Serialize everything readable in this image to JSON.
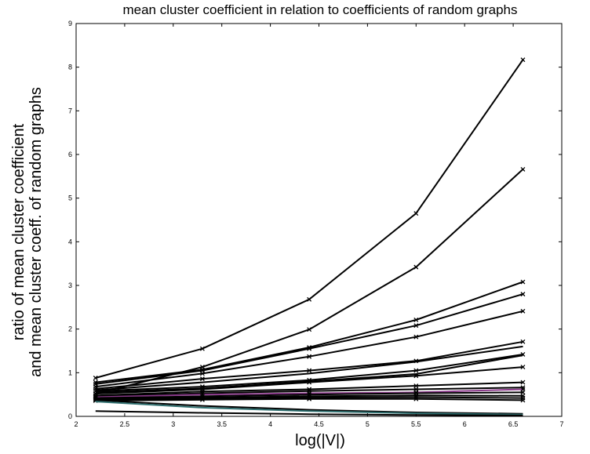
{
  "chart_data": {
    "type": "line",
    "title": "mean cluster coefficient in relation to coefficients of random graphs",
    "xlabel": "log(|V|)",
    "ylabel_lines": [
      "ratio of mean cluster coefficient",
      "and mean cluster coeff. of random graphs"
    ],
    "xlim": [
      2,
      7
    ],
    "ylim": [
      0,
      9
    ],
    "xticks": [
      "2",
      "2.5",
      "3",
      "3.5",
      "4",
      "4.5",
      "5",
      "5.5",
      "6",
      "6.5",
      "7"
    ],
    "yticks": [
      "0",
      "1",
      "2",
      "3",
      "4",
      "5",
      "6",
      "7",
      "8",
      "9"
    ],
    "grid": false,
    "x": [
      2.2,
      3.3,
      4.4,
      5.5,
      6.6
    ],
    "series": [
      {
        "values": [
          0.88,
          1.55,
          2.68,
          4.65,
          8.17
        ],
        "marker": true,
        "color": "#000000"
      },
      {
        "values": [
          0.52,
          1.13,
          1.99,
          3.42,
          5.66
        ],
        "marker": true,
        "color": "#000000"
      },
      {
        "values": [
          0.78,
          1.07,
          1.58,
          2.21,
          3.08
        ],
        "marker": true,
        "color": "#000000"
      },
      {
        "values": [
          0.74,
          1.05,
          1.55,
          2.08,
          2.8
        ],
        "marker": true,
        "color": "#000000"
      },
      {
        "values": [
          0.68,
          0.98,
          1.37,
          1.82,
          2.41
        ],
        "marker": true,
        "color": "#000000"
      },
      {
        "values": [
          0.63,
          0.86,
          1.05,
          1.27,
          1.71
        ],
        "marker": true,
        "color": "#000000"
      },
      {
        "values": [
          0.6,
          0.78,
          0.98,
          1.25,
          1.6
        ],
        "marker": false,
        "color": "#000000"
      },
      {
        "values": [
          0.58,
          0.68,
          0.83,
          1.05,
          1.42
        ],
        "marker": true,
        "color": "#000000"
      },
      {
        "values": [
          0.55,
          0.64,
          0.8,
          0.97,
          1.4
        ],
        "marker": false,
        "color": "#000000"
      },
      {
        "values": [
          0.52,
          0.62,
          0.78,
          0.93,
          1.13
        ],
        "marker": true,
        "color": "#000000"
      },
      {
        "values": [
          0.48,
          0.57,
          0.62,
          0.7,
          0.78
        ],
        "marker": true,
        "color": "#000000"
      },
      {
        "values": [
          0.46,
          0.53,
          0.58,
          0.62,
          0.66
        ],
        "marker": true,
        "color": "#000000"
      },
      {
        "values": [
          0.44,
          0.5,
          0.53,
          0.55,
          0.62
        ],
        "marker": true,
        "color": "#8a3a8a"
      },
      {
        "values": [
          0.42,
          0.46,
          0.5,
          0.53,
          0.55
        ],
        "marker": true,
        "color": "#000000"
      },
      {
        "values": [
          0.4,
          0.43,
          0.46,
          0.48,
          0.47
        ],
        "marker": true,
        "color": "#000000"
      },
      {
        "values": [
          0.38,
          0.41,
          0.43,
          0.44,
          0.42
        ],
        "marker": true,
        "color": "#000000"
      },
      {
        "values": [
          0.36,
          0.38,
          0.4,
          0.4,
          0.37
        ],
        "marker": true,
        "color": "#000000"
      },
      {
        "values": [
          0.37,
          0.24,
          0.15,
          0.09,
          0.06
        ],
        "marker": false,
        "color": "#000000"
      },
      {
        "values": [
          0.34,
          0.2,
          0.12,
          0.07,
          0.04
        ],
        "marker": false,
        "color": "#2f6f6f"
      },
      {
        "values": [
          0.12,
          0.08,
          0.05,
          0.03,
          0.02
        ],
        "marker": false,
        "color": "#000000"
      }
    ]
  }
}
